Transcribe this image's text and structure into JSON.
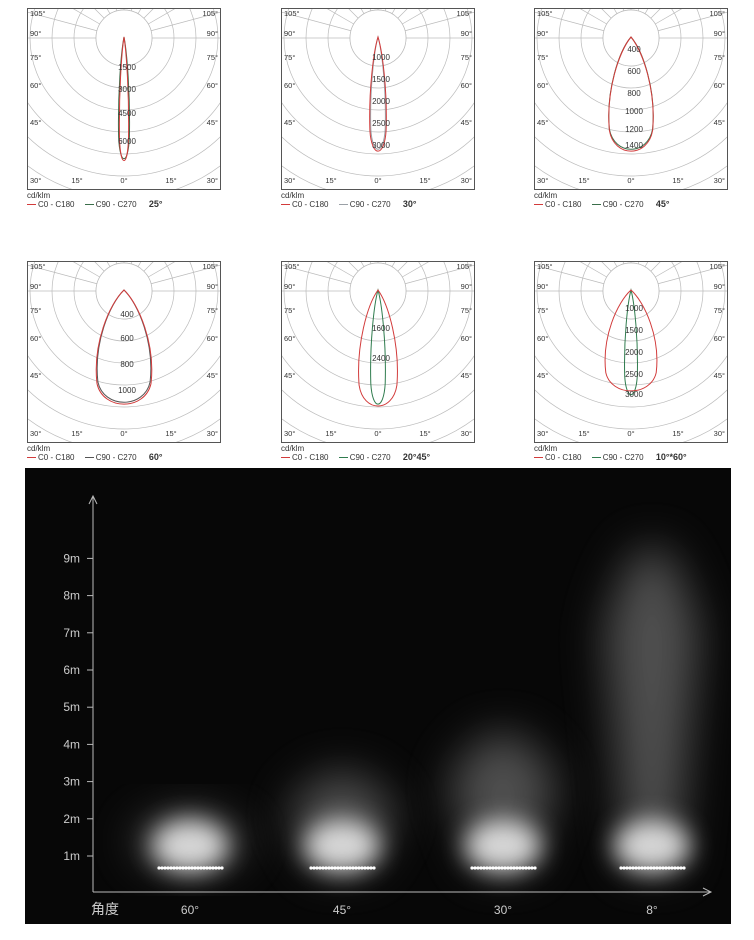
{
  "legend": {
    "unit": "cd/klm",
    "c0": "C0 - C180",
    "c90": "C90 - C270",
    "c0_color": "#d23b3b",
    "c90_color": "#3a6e4a"
  },
  "polar_common": {
    "angle_labels": {
      "left": [
        "105°",
        "90°",
        "75°",
        "60°",
        "45°",
        "30°",
        "15°"
      ],
      "right": [
        "105°",
        "90°",
        "75°",
        "60°",
        "45°",
        "30°",
        "15°"
      ],
      "bottom_center": "0°"
    }
  },
  "polar_charts": [
    {
      "beam_label": "25°",
      "rings": [
        "1500",
        "3000",
        "4500",
        "6000"
      ],
      "c90_color": "#3a6e4a"
    },
    {
      "beam_label": "30°",
      "rings": [
        "1000",
        "1500",
        "2000",
        "2500",
        "3000"
      ],
      "c90_color": "#9aa0a6"
    },
    {
      "beam_label": "45°",
      "rings": [
        "400",
        "600",
        "800",
        "1000",
        "1200",
        "1400"
      ],
      "c90_color": "#3a6e4a"
    },
    {
      "beam_label": "60°",
      "rings": [
        "400",
        "600",
        "800",
        "1000"
      ],
      "c90_color": "#555555"
    },
    {
      "beam_label": "20°45°",
      "rings": [
        "1600",
        "2400"
      ],
      "c90_color": "#2f7c4e"
    },
    {
      "beam_label": "10°*60°",
      "rings": [
        "1000",
        "1500",
        "2000",
        "2500",
        "3000"
      ],
      "c90_color": "#2f7c4e"
    }
  ],
  "light_panel": {
    "y_ticks": [
      "1m",
      "2m",
      "3m",
      "4m",
      "5m",
      "6m",
      "7m",
      "8m",
      "9m"
    ],
    "x_axis_title": "角度",
    "beams": [
      "60°",
      "45°",
      "30°",
      "8°"
    ],
    "background_color": "#070707"
  }
}
